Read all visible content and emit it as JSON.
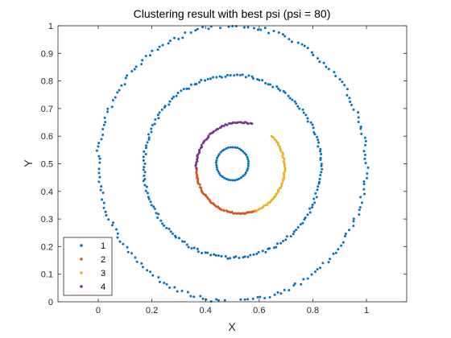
{
  "chart_data": {
    "type": "scatter",
    "title": "Clustering result with best psi (psi = 80)",
    "xlabel": "X",
    "ylabel": "Y",
    "xlim": [
      -0.15,
      1.15
    ],
    "ylim": [
      0,
      1
    ],
    "xticks": [
      "0",
      "0.2",
      "0.4",
      "0.6",
      "0.8",
      "1"
    ],
    "xtick_values": [
      0,
      0.2,
      0.4,
      0.6,
      0.8,
      1
    ],
    "yticks": [
      "0",
      "0.1",
      "0.2",
      "0.3",
      "0.4",
      "0.5",
      "0.6",
      "0.7",
      "0.8",
      "0.9",
      "1"
    ],
    "ytick_values": [
      0,
      0.1,
      0.2,
      0.3,
      0.4,
      0.5,
      0.6,
      0.7,
      0.8,
      0.9,
      1
    ],
    "legend_position": "bottom-left",
    "series": [
      {
        "name": "1",
        "color": "#0072BD",
        "rings": [
          {
            "cx": 0.5,
            "cy": 0.5,
            "r": 0.06,
            "from_deg": 0,
            "to_deg": 360,
            "n": 45
          },
          {
            "cx": 0.5,
            "cy": 0.49,
            "r": 0.33,
            "from_deg": 0,
            "to_deg": 360,
            "n": 190
          },
          {
            "cx": 0.5,
            "cy": 0.5,
            "r": 0.5,
            "from_deg": 0,
            "to_deg": 360,
            "n": 200
          }
        ]
      },
      {
        "name": "2",
        "color": "#D95319",
        "rings": [
          {
            "cx": 0.53,
            "cy": 0.485,
            "r": 0.165,
            "from_deg": 180,
            "to_deg": 290,
            "n": 55
          }
        ]
      },
      {
        "name": "3",
        "color": "#EDB120",
        "rings": [
          {
            "cx": 0.53,
            "cy": 0.485,
            "r": 0.165,
            "from_deg": -70,
            "to_deg": 45,
            "n": 55
          }
        ]
      },
      {
        "name": "4",
        "color": "#7E2F8E",
        "rings": [
          {
            "cx": 0.53,
            "cy": 0.485,
            "r": 0.165,
            "from_deg": 75,
            "to_deg": 180,
            "n": 50
          }
        ]
      }
    ]
  }
}
